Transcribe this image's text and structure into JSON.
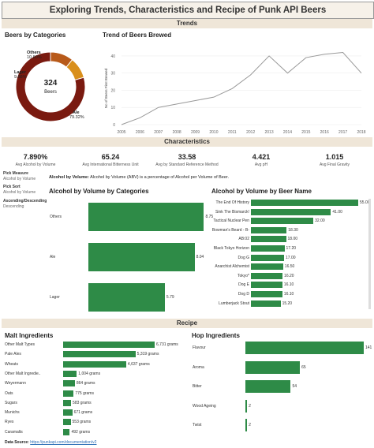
{
  "title": "Exploring Trends, Characteristics and Recipe of Punk API Beers",
  "sections": {
    "trends": "Trends",
    "characteristics": "Characteristics",
    "recipe": "Recipe"
  },
  "donut": {
    "title": "Beers by Categories",
    "center_value": "324",
    "center_label": "Beers",
    "slices": [
      {
        "name": "Ale",
        "pct_label": "79.32%",
        "value": 79.32,
        "color": "#7a1a10"
      },
      {
        "name": "Lager",
        "pct_label": "9.88%",
        "value": 9.88,
        "color": "#d98f1c"
      },
      {
        "name": "Others",
        "pct_label": "10.80%",
        "value": 10.8,
        "color": "#b85a1a"
      }
    ]
  },
  "trend": {
    "title": "Trend of Beers Brewed",
    "ylabel": "No of Beers First Brewed",
    "years": [
      "2005",
      "2006",
      "2007",
      "2008",
      "2009",
      "2010",
      "2011",
      "2012",
      "2013",
      "2014",
      "2015",
      "2016",
      "2017",
      "2018"
    ],
    "values": [
      0,
      4,
      10,
      12,
      14,
      16,
      21,
      29,
      40,
      30,
      39,
      41,
      42,
      30
    ],
    "yticks": [
      "0",
      "10",
      "20",
      "30",
      "40"
    ],
    "ymax": 45
  },
  "kpis": [
    {
      "value": "7.890%",
      "label": "Avg Alcohol by Volume"
    },
    {
      "value": "65.24",
      "label": "Avg International Bitterness Unit"
    },
    {
      "value": "33.58",
      "label": "Avg by Standard Reference Method"
    },
    {
      "value": "4.421",
      "label": "Avg pH"
    },
    {
      "value": "1.015",
      "label": "Avg Final Gravity"
    }
  ],
  "controls": {
    "pick_measure_label": "Pick Measure",
    "pick_measure_value": "Alcohol by Volume",
    "pick_sort_label": "Pick Sort",
    "pick_sort_value": "Alcohol by Volume",
    "order_label": "Ascending/Descending",
    "order_value": "Descending"
  },
  "measure_note_bold": "Alcohol by Volume:",
  "measure_note": "Alcohol by Volume (ABV) is a percentage of Alcohol per Volume of Beer.",
  "chart_data": [
    {
      "type": "bar",
      "title": "Alcohol by Volume by Categories",
      "categories": [
        "Others",
        "Ale",
        "Lager"
      ],
      "values": [
        8.75,
        8.04,
        5.79
      ],
      "labels": [
        "8.75",
        "8.04",
        "5.79"
      ],
      "xlim": [
        0,
        9.2
      ]
    },
    {
      "type": "bar",
      "title": "Alcohol by Volume by Beer Name",
      "categories": [
        "The End Of History",
        "Sink The Bismarck!",
        "Tactical Nuclear Pen",
        "Bowman's Beard - B-",
        "AB:02",
        "Black Tokyo Horizon",
        "Dog G",
        "Anarchist Alchemist",
        "Tokyo*",
        "Dog E",
        "Dog D",
        "Lumberjack Stout"
      ],
      "values": [
        55.0,
        41.0,
        32.0,
        18.3,
        18.0,
        17.2,
        17.0,
        16.5,
        16.2,
        16.1,
        16.1,
        15.2
      ],
      "labels": [
        "55.00",
        "41.00",
        "32.00",
        "18.30",
        "18.00",
        "17.20",
        "17.00",
        "16.50",
        "16.20",
        "16.10",
        "16.10",
        "15.20"
      ],
      "xlim": [
        0,
        55
      ]
    },
    {
      "type": "bar",
      "title": "Malt Ingredients",
      "categories": [
        "Other Malt Types",
        "Pale Ales",
        "Wheats",
        "Other Malt Ingredie..",
        "Weyermann",
        "Oats",
        "Sugars",
        "Munichs",
        "Ryes",
        "Caramalts"
      ],
      "values": [
        6731,
        5319,
        4637,
        1004,
        864,
        775,
        583,
        671,
        553,
        492
      ],
      "labels": [
        "6,731 grams",
        "5,319 grams",
        "4,637 grams",
        "1,004 grams",
        "864 grams",
        "775 grams",
        "583 grams",
        "671 grams",
        "553 grams",
        "492 grams"
      ],
      "xlim": [
        0,
        6731
      ]
    },
    {
      "type": "bar",
      "title": "Hop Ingredients",
      "categories": [
        "Flavour",
        "Aroma",
        "Bitter",
        "Wood Ageing",
        "Twist"
      ],
      "values": [
        141,
        65,
        54,
        2,
        2
      ],
      "labels": [
        "141",
        "65",
        "54",
        "2",
        "2"
      ],
      "xlim": [
        0,
        141
      ]
    }
  ],
  "footer": {
    "label": "Data Source:",
    "link": "https://punkapi.com/documentation/v2"
  },
  "colors": {
    "bar": "#2e8b47",
    "banner": "#efe6d8",
    "line": "#999999"
  }
}
